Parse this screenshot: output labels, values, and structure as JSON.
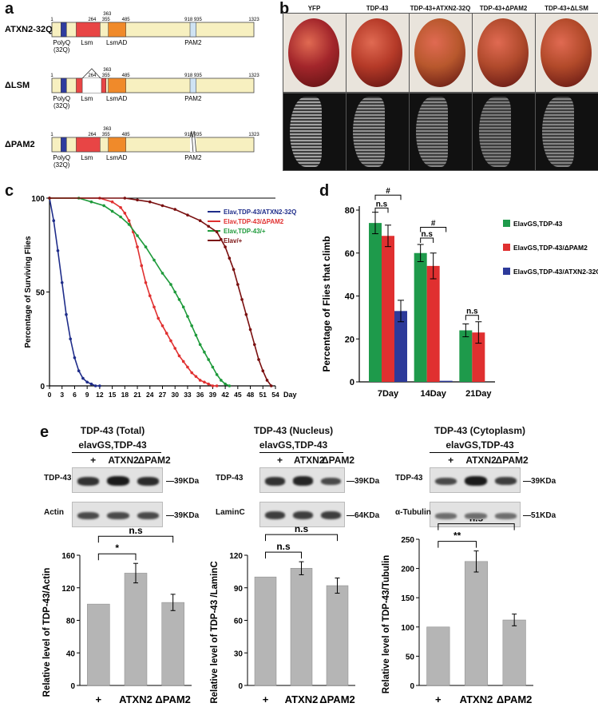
{
  "panel_a": {
    "letter": "a",
    "constructs": [
      {
        "name": "ATXN2-32Q",
        "ticks": [
          "1",
          "264",
          "355",
          "363",
          "485",
          "918 935",
          "1323"
        ],
        "labels": [
          "PolyQ",
          "(32Q)",
          "Lsm",
          "LsmAD",
          "PAM2"
        ]
      },
      {
        "name": "ΔLSM",
        "ticks": [
          "1",
          "264",
          "355",
          "363",
          "485",
          "918 935",
          "1323"
        ],
        "labels": [
          "PolyQ",
          "(32Q)",
          "Lsm",
          "LsmAD",
          "PAM2"
        ]
      },
      {
        "name": "ΔPAM2",
        "ticks": [
          "1",
          "264",
          "355",
          "363",
          "485",
          "918 935",
          "1323"
        ],
        "labels": [
          "PolyQ",
          "(32Q)",
          "Lsm",
          "LsmAD",
          "PAM2"
        ]
      }
    ]
  },
  "panel_b": {
    "letter": "b",
    "columns": [
      "YFP",
      "TDP-43",
      "TDP-43+ATXN2-32Q",
      "TDP-43+ΔPAM2",
      "TDP-43+ΔLSM"
    ]
  },
  "panel_c": {
    "letter": "c",
    "chart_data": {
      "type": "line",
      "ylabel": "Percentage of Surviving Flies",
      "xlabel": "Day",
      "xlim": [
        0,
        54
      ],
      "ylim": [
        0,
        100
      ],
      "xticks": [
        "0",
        "3",
        "6",
        "9",
        "12",
        "15",
        "18",
        "21",
        "24",
        "27",
        "30",
        "33",
        "36",
        "39",
        "42",
        "45",
        "48",
        "51",
        "54"
      ],
      "yticks": [
        "0",
        "50",
        "100"
      ],
      "series": [
        {
          "name": "Elav,TDP-43/ATXN2-32Q",
          "color": "#1f2d8a",
          "x": [
            0,
            1,
            2,
            3,
            4,
            5,
            6,
            7,
            8,
            9,
            10,
            11,
            12
          ],
          "y": [
            100,
            88,
            72,
            55,
            38,
            25,
            15,
            8,
            4,
            2,
            1,
            0,
            0
          ]
        },
        {
          "name": "Elav,TDP-43/ΔPAM2",
          "color": "#e03030",
          "x": [
            0,
            12,
            15,
            17,
            18,
            19,
            20,
            21,
            22,
            23,
            24,
            25,
            26,
            27,
            28,
            29,
            30,
            31,
            32,
            33,
            34,
            35,
            36,
            37,
            38,
            39,
            40
          ],
          "y": [
            100,
            100,
            98,
            95,
            92,
            88,
            82,
            74,
            64,
            55,
            48,
            42,
            36,
            32,
            28,
            24,
            20,
            16,
            13,
            10,
            7,
            5,
            3,
            2,
            1,
            0,
            0
          ]
        },
        {
          "name": "Elav,TDP-43/+",
          "color": "#1e9a3b",
          "x": [
            0,
            7,
            10,
            13,
            15,
            17,
            19,
            21,
            23,
            25,
            27,
            29,
            30,
            31,
            32,
            33,
            34,
            35,
            36,
            37,
            38,
            39,
            40,
            41,
            42,
            43
          ],
          "y": [
            100,
            100,
            98,
            96,
            93,
            90,
            86,
            80,
            74,
            67,
            60,
            54,
            50,
            46,
            42,
            37,
            32,
            27,
            22,
            18,
            14,
            10,
            6,
            3,
            1,
            0
          ]
        },
        {
          "name": "Elav/+",
          "color": "#7a1010",
          "x": [
            0,
            18,
            21,
            24,
            27,
            30,
            33,
            36,
            38,
            40,
            41,
            42,
            43,
            44,
            45,
            46,
            47,
            48,
            49,
            50,
            51,
            52,
            53
          ],
          "y": [
            100,
            100,
            99,
            98,
            96,
            94,
            91,
            88,
            85,
            82,
            78,
            74,
            68,
            62,
            54,
            46,
            38,
            30,
            22,
            14,
            8,
            3,
            0
          ]
        }
      ]
    }
  },
  "panel_d": {
    "letter": "d",
    "chart_data": {
      "type": "bar",
      "ylabel": "Percentage of Flies that climb",
      "categories": [
        "7Day",
        "14Day",
        "21Day"
      ],
      "ylim": [
        0,
        80
      ],
      "yticks": [
        "0",
        "20",
        "40",
        "60",
        "80"
      ],
      "series": [
        {
          "name": "ElavGS,TDP-43",
          "color": "#1e9a4b",
          "values": [
            74,
            60,
            24
          ],
          "errors": [
            5,
            4,
            3
          ]
        },
        {
          "name": "ElavGS,TDP-43/ΔPAM2",
          "color": "#e03030",
          "values": [
            68,
            54,
            23
          ],
          "errors": [
            5,
            6,
            5
          ]
        },
        {
          "name": "ElavGS,TDP-43/ATXN2-32Q",
          "color": "#2d3a9a",
          "values": [
            33,
            0.5,
            null
          ],
          "errors": [
            5,
            0,
            0
          ]
        }
      ],
      "annotations": [
        "n.s",
        "#",
        "n.s",
        "#",
        "n.s"
      ]
    }
  },
  "panel_e": {
    "letter": "e",
    "blots": [
      {
        "title": "TDP-43 (Total)",
        "genotype": "elavGS,TDP-43",
        "lanes": [
          "+",
          "ATXN2",
          "ΔPAM2"
        ],
        "rows": [
          {
            "label": "TDP-43",
            "kda": "39KDa"
          },
          {
            "label": "Actin",
            "kda": "39KDa"
          }
        ]
      },
      {
        "title": "TDP-43 (Nucleus)",
        "genotype": "elavGS,TDP-43",
        "lanes": [
          "+",
          "ATXN2",
          "ΔPAM2"
        ],
        "rows": [
          {
            "label": "TDP-43",
            "kda": "39KDa"
          },
          {
            "label": "LaminC",
            "kda": "64KDa"
          }
        ]
      },
      {
        "title": "TDP-43 (Cytoplasm)",
        "genotype": "elavGS,TDP-43",
        "lanes": [
          "+",
          "ATXN2",
          "ΔPAM2"
        ],
        "rows": [
          {
            "label": "TDP-43",
            "kda": "39KDa"
          },
          {
            "label": "α-Tubulin",
            "kda": "51KDa"
          }
        ]
      }
    ],
    "chart_data": [
      {
        "type": "bar",
        "ylabel": "Relative level of TDP-43/Actin",
        "categories": [
          "+",
          "ATXN2",
          "ΔPAM2"
        ],
        "values": [
          100,
          138,
          102
        ],
        "errors": [
          0,
          12,
          10
        ],
        "ylim": [
          0,
          160
        ],
        "yticks": [
          "0",
          "40",
          "80",
          "120",
          "160"
        ],
        "annotations": [
          "*",
          "n.s"
        ]
      },
      {
        "type": "bar",
        "ylabel": "Relative level of TDP-43 /LaminC",
        "categories": [
          "+",
          "ATXN2",
          "ΔPAM2"
        ],
        "values": [
          100,
          108,
          92
        ],
        "errors": [
          0,
          6,
          7
        ],
        "ylim": [
          0,
          120
        ],
        "yticks": [
          "0",
          "30",
          "60",
          "90",
          "120"
        ],
        "annotations": [
          "n.s",
          "n.s"
        ]
      },
      {
        "type": "bar",
        "ylabel": "Relative level of TDP-43/Tubulin",
        "categories": [
          "+",
          "ATXN2",
          "ΔPAM2"
        ],
        "values": [
          100,
          212,
          112
        ],
        "errors": [
          0,
          18,
          10
        ],
        "ylim": [
          0,
          250
        ],
        "yticks": [
          "0",
          "50",
          "100",
          "150",
          "200",
          "250"
        ],
        "annotations": [
          "**",
          "n.s"
        ]
      }
    ]
  }
}
